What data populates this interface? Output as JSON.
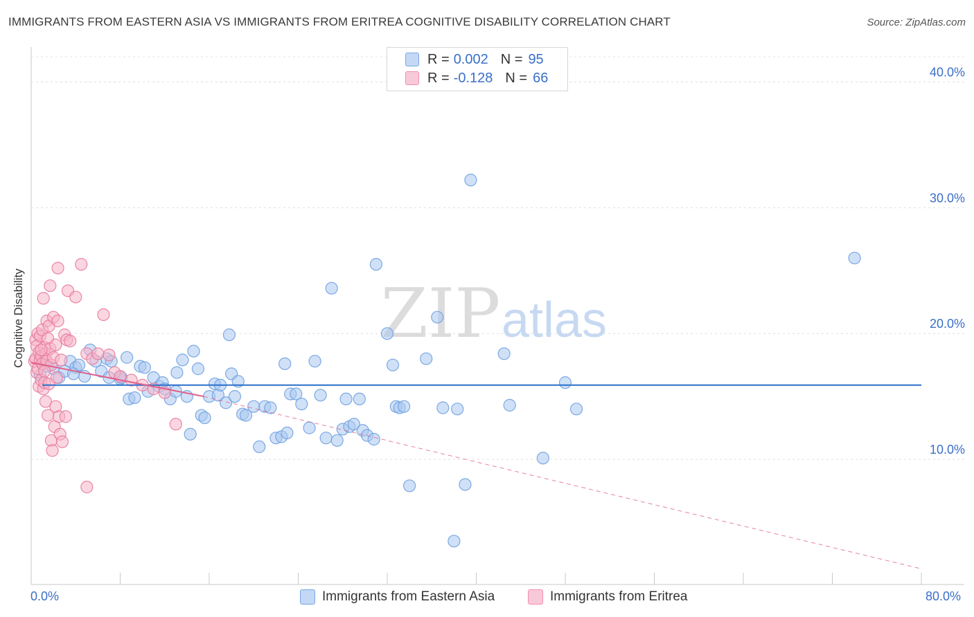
{
  "header": {
    "title": "IMMIGRANTS FROM EASTERN ASIA VS IMMIGRANTS FROM ERITREA COGNITIVE DISABILITY CORRELATION CHART",
    "source": "Source: ZipAtlas.com"
  },
  "legend": {
    "rows": [
      {
        "r_label": "R =",
        "r_value": "0.002",
        "n_label": "N =",
        "n_value": "95",
        "color": "#aac8f0"
      },
      {
        "r_label": "R =",
        "r_value": "-0.128",
        "n_label": "N =",
        "n_value": "66",
        "color": "#f5b5c8"
      }
    ]
  },
  "watermark": {
    "zip": "ZIP",
    "atlas": "atlas"
  },
  "chart_data": {
    "type": "scatter",
    "title": "IMMIGRANTS FROM EASTERN ASIA VS IMMIGRANTS FROM ERITREA COGNITIVE DISABILITY CORRELATION CHART",
    "ylabel": "Cognitive Disability",
    "xlabel": "",
    "xlim": [
      0,
      80
    ],
    "ylim": [
      0,
      42
    ],
    "x_tick_labels": [
      "0.0%",
      "80.0%"
    ],
    "y_ticks": [
      10,
      20,
      30,
      40
    ],
    "y_tick_labels": [
      "10.0%",
      "20.0%",
      "30.0%",
      "40.0%"
    ],
    "grid": true,
    "series": [
      {
        "name": "Immigrants from Eastern Asia",
        "color": "#6fa0e0",
        "fill": "#aac8f0",
        "points": [
          [
            1.0,
            17.6
          ],
          [
            1.5,
            17.4
          ],
          [
            2.0,
            17.2
          ],
          [
            2.5,
            16.5
          ],
          [
            3.0,
            17.0
          ],
          [
            3.5,
            17.8
          ],
          [
            4.0,
            17.3
          ],
          [
            4.3,
            17.5
          ],
          [
            4.8,
            16.6
          ],
          [
            5.3,
            18.7
          ],
          [
            5.8,
            17.8
          ],
          [
            6.3,
            17.0
          ],
          [
            6.8,
            18.0
          ],
          [
            7.0,
            16.5
          ],
          [
            7.2,
            17.8
          ],
          [
            8.0,
            16.4
          ],
          [
            8.1,
            16.5
          ],
          [
            8.6,
            18.1
          ],
          [
            8.8,
            14.8
          ],
          [
            9.3,
            14.9
          ],
          [
            9.8,
            17.4
          ],
          [
            10.2,
            17.3
          ],
          [
            10.5,
            15.4
          ],
          [
            11.0,
            16.5
          ],
          [
            11.5,
            15.8
          ],
          [
            11.8,
            16.1
          ],
          [
            12.0,
            15.6
          ],
          [
            12.5,
            14.8
          ],
          [
            13.0,
            15.4
          ],
          [
            13.1,
            16.9
          ],
          [
            13.6,
            17.9
          ],
          [
            14.0,
            15.0
          ],
          [
            14.3,
            12.0
          ],
          [
            14.6,
            18.6
          ],
          [
            15.0,
            17.2
          ],
          [
            15.3,
            13.5
          ],
          [
            15.6,
            13.3
          ],
          [
            16.0,
            15.0
          ],
          [
            16.5,
            16.0
          ],
          [
            16.8,
            15.1
          ],
          [
            17.0,
            15.9
          ],
          [
            17.5,
            14.5
          ],
          [
            17.8,
            19.9
          ],
          [
            18.0,
            16.8
          ],
          [
            18.3,
            15.0
          ],
          [
            18.6,
            16.2
          ],
          [
            19.0,
            13.6
          ],
          [
            19.3,
            13.5
          ],
          [
            20.0,
            14.2
          ],
          [
            20.5,
            11.0
          ],
          [
            21.0,
            14.2
          ],
          [
            21.5,
            14.1
          ],
          [
            22.0,
            11.7
          ],
          [
            22.5,
            11.8
          ],
          [
            22.8,
            17.6
          ],
          [
            23.0,
            12.1
          ],
          [
            23.3,
            15.2
          ],
          [
            23.8,
            15.2
          ],
          [
            24.3,
            14.4
          ],
          [
            25.0,
            12.5
          ],
          [
            25.5,
            17.8
          ],
          [
            26.0,
            15.1
          ],
          [
            26.5,
            11.7
          ],
          [
            27.0,
            23.6
          ],
          [
            27.5,
            11.5
          ],
          [
            28.0,
            12.4
          ],
          [
            28.3,
            14.8
          ],
          [
            28.6,
            12.6
          ],
          [
            29.0,
            12.8
          ],
          [
            29.5,
            14.8
          ],
          [
            29.8,
            12.3
          ],
          [
            30.2,
            11.9
          ],
          [
            30.8,
            11.6
          ],
          [
            31.0,
            25.5
          ],
          [
            32.0,
            20.0
          ],
          [
            32.5,
            17.5
          ],
          [
            32.8,
            14.2
          ],
          [
            33.1,
            14.1
          ],
          [
            33.5,
            14.2
          ],
          [
            34.0,
            7.9
          ],
          [
            35.5,
            18.0
          ],
          [
            36.5,
            21.3
          ],
          [
            37.0,
            14.1
          ],
          [
            38.0,
            3.5
          ],
          [
            38.3,
            14.0
          ],
          [
            39.0,
            8.0
          ],
          [
            39.5,
            32.2
          ],
          [
            42.5,
            18.4
          ],
          [
            43.0,
            14.3
          ],
          [
            46.0,
            10.1
          ],
          [
            48.0,
            16.1
          ],
          [
            49.0,
            14.0
          ],
          [
            74.0,
            26.0
          ],
          [
            0.8,
            16.7
          ],
          [
            3.8,
            16.8
          ]
        ]
      },
      {
        "name": "Immigrants from Eritrea",
        "color": "#e87a9c",
        "fill": "#f5b5c8",
        "points": [
          [
            0.3,
            17.8
          ],
          [
            0.4,
            19.5
          ],
          [
            0.4,
            18.0
          ],
          [
            0.5,
            16.9
          ],
          [
            0.5,
            19.0
          ],
          [
            0.6,
            20.0
          ],
          [
            0.6,
            17.2
          ],
          [
            0.7,
            15.8
          ],
          [
            0.7,
            18.5
          ],
          [
            0.8,
            17.9
          ],
          [
            0.8,
            19.8
          ],
          [
            0.9,
            16.3
          ],
          [
            0.9,
            18.2
          ],
          [
            1.0,
            17.6
          ],
          [
            1.0,
            20.3
          ],
          [
            1.1,
            22.8
          ],
          [
            1.1,
            15.6
          ],
          [
            1.2,
            18.9
          ],
          [
            1.2,
            16.1
          ],
          [
            1.3,
            14.6
          ],
          [
            1.3,
            18.4
          ],
          [
            1.4,
            21.0
          ],
          [
            1.4,
            17.8
          ],
          [
            1.5,
            13.5
          ],
          [
            1.5,
            19.6
          ],
          [
            1.6,
            16.0
          ],
          [
            1.6,
            20.6
          ],
          [
            1.7,
            23.8
          ],
          [
            1.7,
            18.8
          ],
          [
            1.8,
            11.5
          ],
          [
            1.8,
            17.5
          ],
          [
            1.9,
            10.7
          ],
          [
            2.0,
            18.1
          ],
          [
            2.0,
            21.3
          ],
          [
            2.1,
            12.6
          ],
          [
            2.2,
            14.2
          ],
          [
            2.2,
            19.1
          ],
          [
            2.3,
            16.5
          ],
          [
            2.4,
            25.2
          ],
          [
            2.4,
            21.0
          ],
          [
            2.5,
            13.4
          ],
          [
            2.6,
            12.0
          ],
          [
            2.7,
            17.9
          ],
          [
            2.8,
            11.4
          ],
          [
            3.0,
            19.9
          ],
          [
            3.1,
            13.4
          ],
          [
            3.2,
            19.5
          ],
          [
            3.3,
            23.4
          ],
          [
            3.5,
            19.4
          ],
          [
            4.0,
            22.9
          ],
          [
            4.5,
            25.5
          ],
          [
            5.0,
            7.8
          ],
          [
            5.0,
            18.4
          ],
          [
            5.5,
            18.0
          ],
          [
            6.0,
            18.4
          ],
          [
            6.5,
            21.5
          ],
          [
            7.0,
            18.3
          ],
          [
            7.5,
            16.9
          ],
          [
            8.0,
            16.6
          ],
          [
            9.0,
            16.3
          ],
          [
            10.0,
            15.9
          ],
          [
            11.0,
            15.6
          ],
          [
            12.0,
            15.3
          ],
          [
            13.0,
            12.8
          ],
          [
            1.2,
            17.0
          ],
          [
            0.9,
            18.7
          ]
        ]
      }
    ],
    "trendlines": [
      {
        "series": "Immigrants from Eastern Asia",
        "x": [
          1,
          80
        ],
        "y": [
          15.9,
          15.9
        ],
        "style": "solid"
      },
      {
        "series": "Immigrants from Eritrea",
        "x": [
          0,
          15.5
        ],
        "y": [
          17.7,
          15.0
        ],
        "style": "solid"
      },
      {
        "series": "Immigrants from Eritrea",
        "x": [
          15.5,
          80
        ],
        "y": [
          15.0,
          1.3
        ],
        "style": "dashed"
      }
    ],
    "legend_position": "top-center"
  }
}
